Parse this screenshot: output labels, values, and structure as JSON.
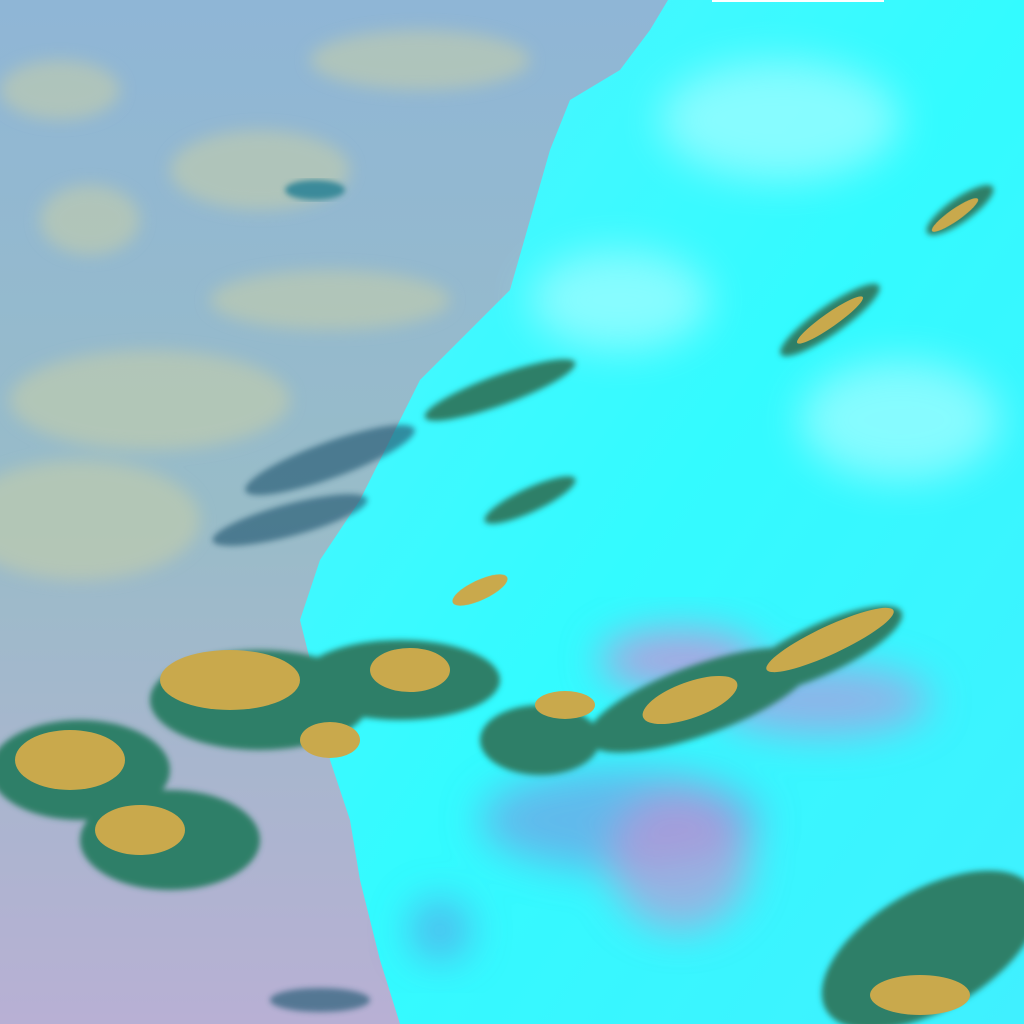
{
  "colors": {
    "ocean": "#8fb4d6",
    "ocean_haze": "#b6c7b8",
    "ocean_south": "#b4b0d2",
    "land_snow": "#33ffff",
    "land_bright": "#9ffbff",
    "cloud_high": "#c9a84e",
    "cloud_edge": "#2e7d6a",
    "haze_magenta": "#c88ad8",
    "haze_blue": "#6f8ee6"
  }
}
